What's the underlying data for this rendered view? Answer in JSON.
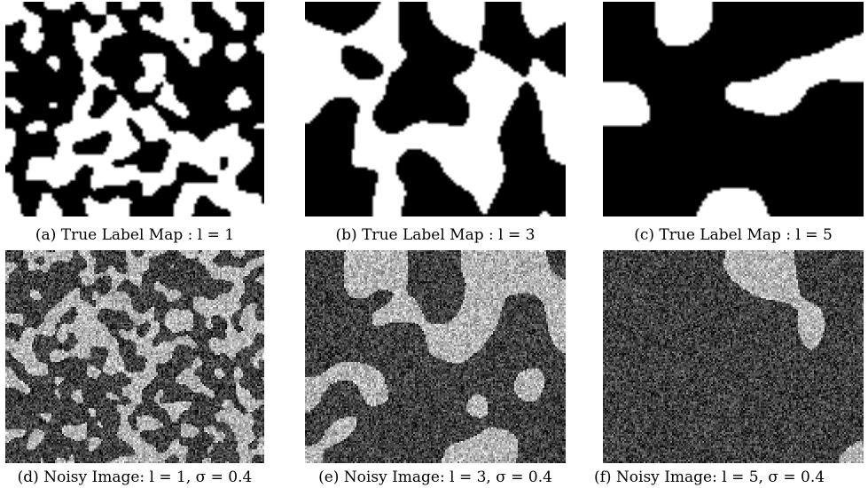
{
  "figure": {
    "panels": [
      {
        "id": "a",
        "caption": "(a) True Label Map : l = 1",
        "kind": "label",
        "l": 1,
        "sigma": null
      },
      {
        "id": "b",
        "caption": "(b) True Label Map : l = 3",
        "kind": "label",
        "l": 3,
        "sigma": null
      },
      {
        "id": "c",
        "caption": "(c) True Label Map : l = 5",
        "kind": "label",
        "l": 5,
        "sigma": null
      },
      {
        "id": "d",
        "caption": "(d) Noisy Image: l = 1, σ = 0.4",
        "kind": "noisy",
        "l": 1,
        "sigma": 0.4
      },
      {
        "id": "e",
        "caption": "(e) Noisy Image: l = 3, σ = 0.4",
        "kind": "noisy",
        "l": 3,
        "sigma": 0.4
      },
      {
        "id": "f",
        "caption": "(f) Noisy Image: l = 5, σ = 0.4",
        "kind": "noisy",
        "l": 5,
        "sigma": 0.4
      }
    ]
  },
  "colors": {
    "foreground": "#ffffff",
    "background": "#000000",
    "noisy_dark": "#404040",
    "noisy_light": "#b4b4b4"
  }
}
